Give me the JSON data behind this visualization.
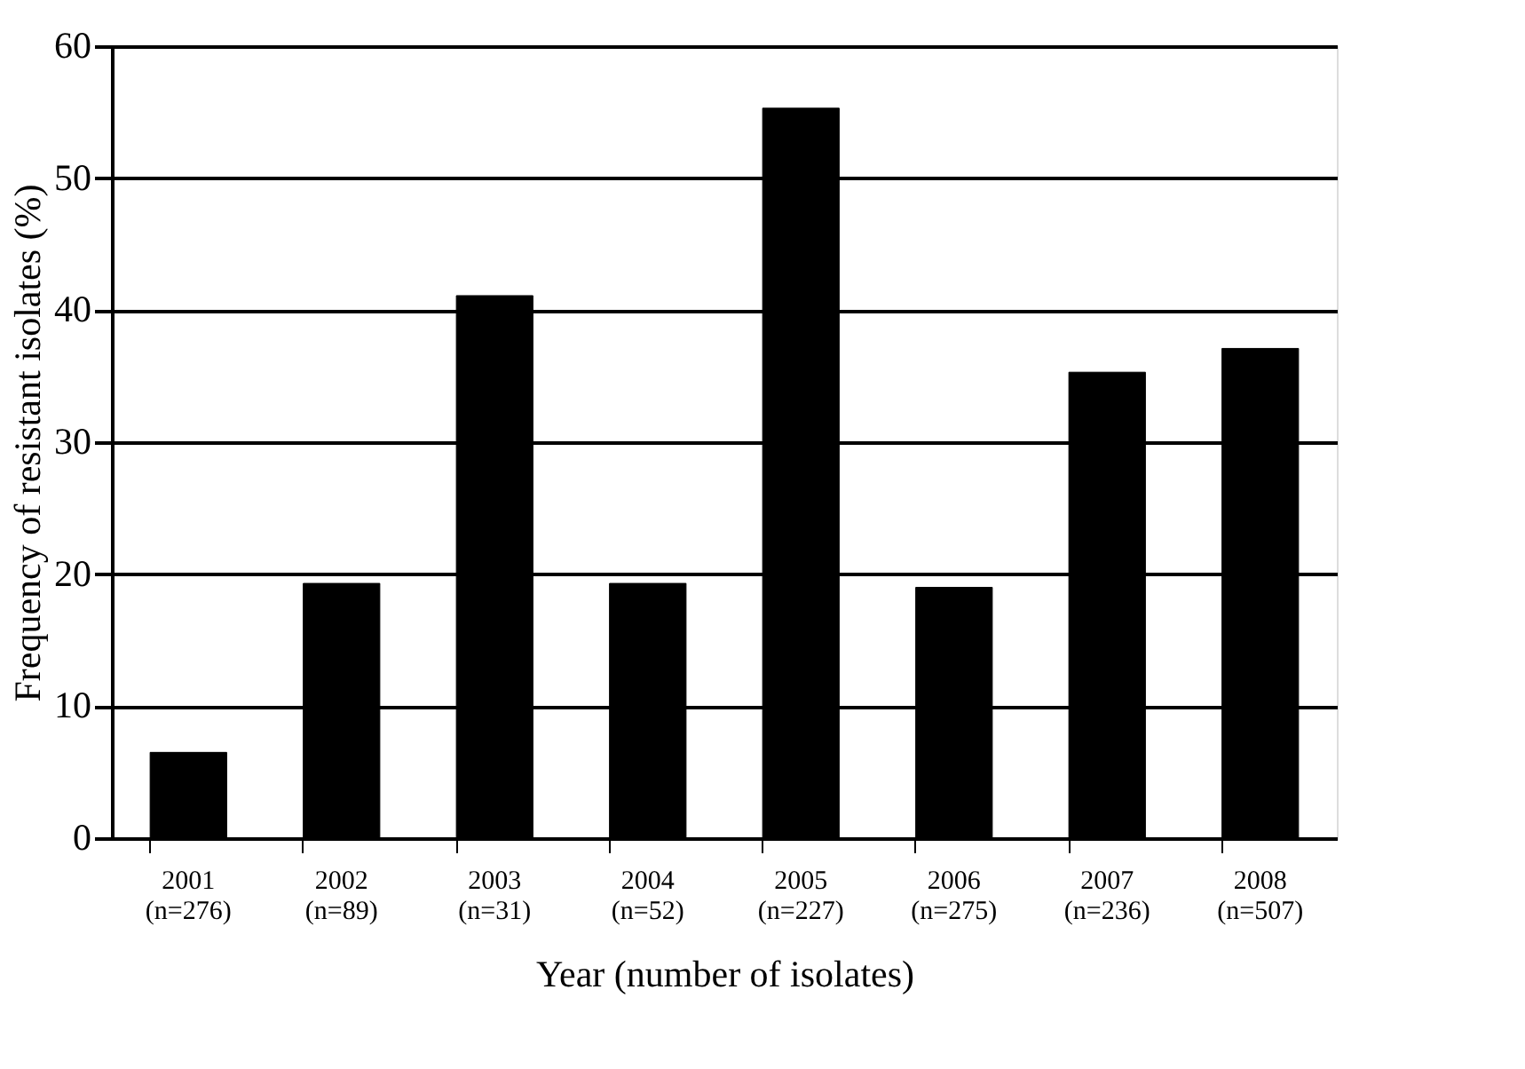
{
  "chart_data": {
    "type": "bar",
    "categories": [
      "2001\n(n=276)",
      "2002\n(n=89)",
      "2003\n(n=31)",
      "2004\n(n=52)",
      "2005\n(n=227)",
      "2006\n(n=275)",
      "2007\n(n=236)",
      "2008\n(n=507)"
    ],
    "values": [
      6.5,
      19.3,
      41.1,
      19.3,
      55.3,
      19.0,
      35.3,
      37.1
    ],
    "color": "#000000",
    "xlabel": "Year (number of isolates)",
    "ylabel": "Frequency of resistant isolates (%)",
    "ylim": [
      0,
      60
    ],
    "yticks": [
      0,
      10,
      20,
      30,
      40,
      50,
      60
    ],
    "grid": "y"
  }
}
